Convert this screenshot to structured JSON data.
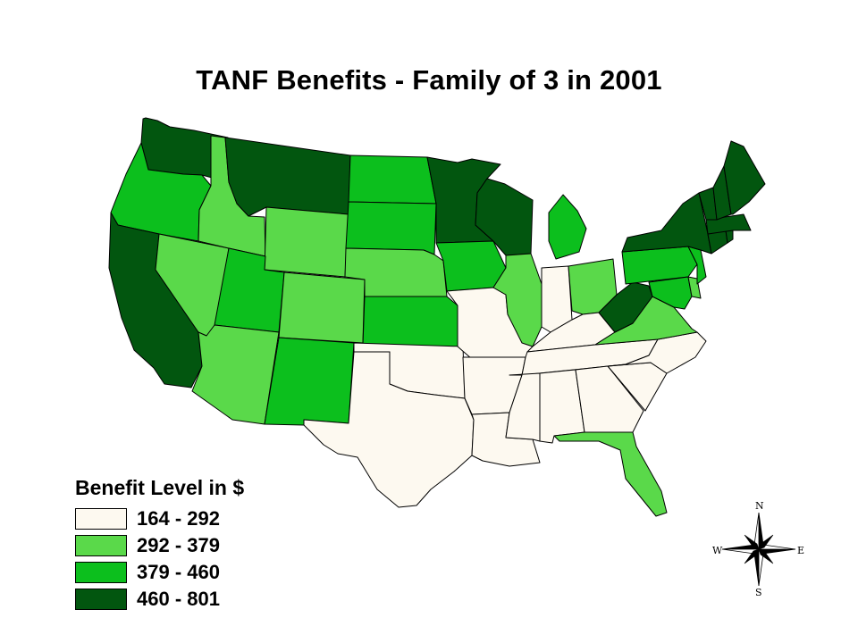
{
  "title": "TANF Benefits - Family of 3 in 2001",
  "legend": {
    "title": "Benefit Level in $",
    "items": [
      {
        "label": "164 - 292",
        "color": "#fdf9f0"
      },
      {
        "label": "292 - 379",
        "color": "#5ad94a"
      },
      {
        "label": "379 - 460",
        "color": "#0cbf1d"
      },
      {
        "label": "460 - 801",
        "color": "#02560f"
      }
    ]
  },
  "compass": {
    "n": "N",
    "s": "S",
    "e": "E",
    "w": "W"
  },
  "states": {
    "WA": 3,
    "OR": 2,
    "CA": 3,
    "NV": 1,
    "ID": 1,
    "MT": 3,
    "WY": 1,
    "UT": 2,
    "AZ": 1,
    "CO": 1,
    "NM": 2,
    "ND": 2,
    "SD": 2,
    "NE": 1,
    "KS": 2,
    "OK": 0,
    "TX": 0,
    "MN": 3,
    "IA": 2,
    "MO": 0,
    "AR": 0,
    "LA": 0,
    "WI": 3,
    "IL": 1,
    "MI": 2,
    "IN": 0,
    "OH": 1,
    "KY": 0,
    "TN": 0,
    "MS": 0,
    "AL": 0,
    "GA": 0,
    "FL": 1,
    "SC": 0,
    "NC": 0,
    "VA": 1,
    "WV": 3,
    "MD": 2,
    "DE": 1,
    "PA": 2,
    "NJ": 2,
    "NY": 3,
    "CT": 3,
    "RI": 3,
    "MA": 3,
    "VT": 3,
    "NH": 3,
    "ME": 3
  }
}
